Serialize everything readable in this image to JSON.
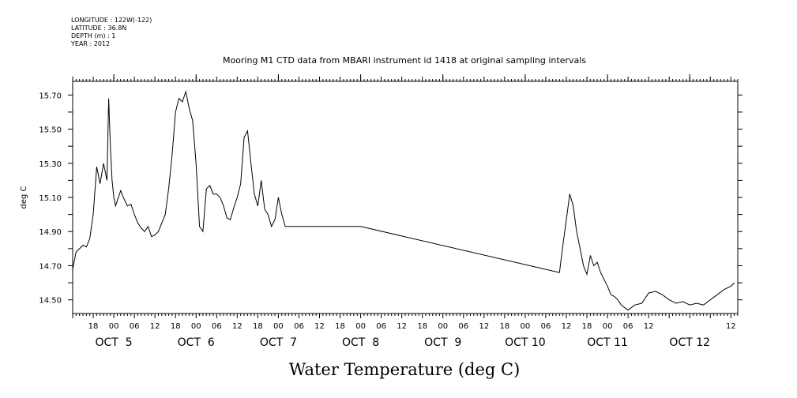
{
  "header_lines": [
    "LONGITUDE : 122W(-122)",
    "LATITUDE : 36.8N",
    "DEPTH (m) : 1",
    "YEAR : 2012"
  ],
  "chart_data": {
    "type": "line",
    "title": "Mooring M1 CTD data from MBARI instrument id 1418 at original sampling intervals",
    "xlabel": "Water Temperature (deg C)",
    "ylabel": "deg C",
    "xlim": [
      "2012-10-04 12:00",
      "2012-10-12 14:00"
    ],
    "ylim": [
      14.42,
      15.78
    ],
    "ytick_labels": [
      "14.50",
      "14.70",
      "14.90",
      "15.10",
      "15.30",
      "15.50",
      "15.70"
    ],
    "xtick_hour_labels": [
      "18",
      "00",
      "06",
      "12",
      "18",
      "00",
      "06",
      "12",
      "18",
      "00",
      "06",
      "12",
      "18",
      "00",
      "06",
      "12",
      "18",
      "00",
      "06",
      "12",
      "18",
      "00",
      "06",
      "12",
      "18",
      "00",
      "06",
      "12",
      "12"
    ],
    "day_labels": [
      "OCT  5",
      "OCT  6",
      "OCT  7",
      "OCT  8",
      "OCT  9",
      "OCT 10",
      "OCT 11",
      "OCT 12"
    ],
    "series": [
      {
        "x": [
          "2012-10-04 12:00",
          "2012-10-04 13:00",
          "2012-10-04 14:00",
          "2012-10-04 15:00",
          "2012-10-04 16:00",
          "2012-10-04 17:00",
          "2012-10-04 18:00",
          "2012-10-04 19:00",
          "2012-10-04 20:00",
          "2012-10-04 21:00",
          "2012-10-04 22:00",
          "2012-10-04 22:30",
          "2012-10-04 23:00",
          "2012-10-04 23:30",
          "2012-10-05 00:00",
          "2012-10-05 00:30",
          "2012-10-05 01:00",
          "2012-10-05 02:00",
          "2012-10-05 03:00",
          "2012-10-05 04:00",
          "2012-10-05 05:00",
          "2012-10-05 06:00",
          "2012-10-05 07:00",
          "2012-10-05 08:00",
          "2012-10-05 09:00",
          "2012-10-05 10:00",
          "2012-10-05 11:00",
          "2012-10-05 12:00",
          "2012-10-05 13:00",
          "2012-10-05 14:00",
          "2012-10-05 15:00",
          "2012-10-05 16:00",
          "2012-10-05 17:00",
          "2012-10-05 18:00",
          "2012-10-05 19:00",
          "2012-10-05 20:00",
          "2012-10-05 21:00",
          "2012-10-05 22:00",
          "2012-10-05 23:00",
          "2012-10-06 00:00",
          "2012-10-06 01:00",
          "2012-10-06 02:00",
          "2012-10-06 03:00",
          "2012-10-06 04:00",
          "2012-10-06 05:00",
          "2012-10-06 06:00",
          "2012-10-06 07:00",
          "2012-10-06 08:00",
          "2012-10-06 09:00",
          "2012-10-06 10:00",
          "2012-10-06 11:00",
          "2012-10-06 12:00",
          "2012-10-06 13:00",
          "2012-10-06 14:00",
          "2012-10-06 15:00",
          "2012-10-06 16:00",
          "2012-10-06 17:00",
          "2012-10-06 18:00",
          "2012-10-06 19:00",
          "2012-10-06 20:00",
          "2012-10-06 21:00",
          "2012-10-06 22:00",
          "2012-10-06 23:00",
          "2012-10-07 00:00",
          "2012-10-07 01:00",
          "2012-10-07 02:00",
          "2012-10-07 03:00",
          "2012-10-08 00:00",
          "2012-10-10 10:00",
          "2012-10-10 11:00",
          "2012-10-10 12:00",
          "2012-10-10 13:00",
          "2012-10-10 14:00",
          "2012-10-10 15:00",
          "2012-10-10 16:00",
          "2012-10-10 17:00",
          "2012-10-10 18:00",
          "2012-10-10 19:00",
          "2012-10-10 20:00",
          "2012-10-10 21:00",
          "2012-10-10 22:00",
          "2012-10-10 23:00",
          "2012-10-11 00:00",
          "2012-10-11 01:00",
          "2012-10-11 02:00",
          "2012-10-11 03:00",
          "2012-10-11 04:00",
          "2012-10-11 06:00",
          "2012-10-11 08:00",
          "2012-10-11 10:00",
          "2012-10-11 12:00",
          "2012-10-11 14:00",
          "2012-10-11 16:00",
          "2012-10-11 18:00",
          "2012-10-11 20:00",
          "2012-10-11 22:00",
          "2012-10-12 00:00",
          "2012-10-12 02:00",
          "2012-10-12 04:00",
          "2012-10-12 06:00",
          "2012-10-12 08:00",
          "2012-10-12 10:00",
          "2012-10-12 12:00",
          "2012-10-12 13:00"
        ],
        "values": [
          14.68,
          14.78,
          14.8,
          14.82,
          14.81,
          14.86,
          15.0,
          15.28,
          15.18,
          15.3,
          15.2,
          15.68,
          15.4,
          15.2,
          15.1,
          15.05,
          15.08,
          15.14,
          15.09,
          15.05,
          15.06,
          15.0,
          14.95,
          14.92,
          14.9,
          14.93,
          14.87,
          14.88,
          14.9,
          14.95,
          15.0,
          15.15,
          15.35,
          15.6,
          15.68,
          15.66,
          15.72,
          15.62,
          15.55,
          15.3,
          14.93,
          14.9,
          15.15,
          15.17,
          15.12,
          15.12,
          15.1,
          15.05,
          14.98,
          14.97,
          15.04,
          15.1,
          15.18,
          15.45,
          15.49,
          15.3,
          15.12,
          15.05,
          15.2,
          15.03,
          15.0,
          14.93,
          14.97,
          15.1,
          15.0,
          14.93,
          14.93,
          14.93,
          14.66,
          14.82,
          14.97,
          15.12,
          15.05,
          14.9,
          14.8,
          14.7,
          14.65,
          14.76,
          14.7,
          14.72,
          14.66,
          14.62,
          14.58,
          14.53,
          14.52,
          14.5,
          14.47,
          14.44,
          14.47,
          14.48,
          14.54,
          14.55,
          14.53,
          14.5,
          14.48,
          14.49,
          14.47,
          14.48,
          14.47,
          14.5,
          14.53,
          14.56,
          14.58,
          14.6
        ]
      }
    ],
    "line_color": "#000000"
  }
}
